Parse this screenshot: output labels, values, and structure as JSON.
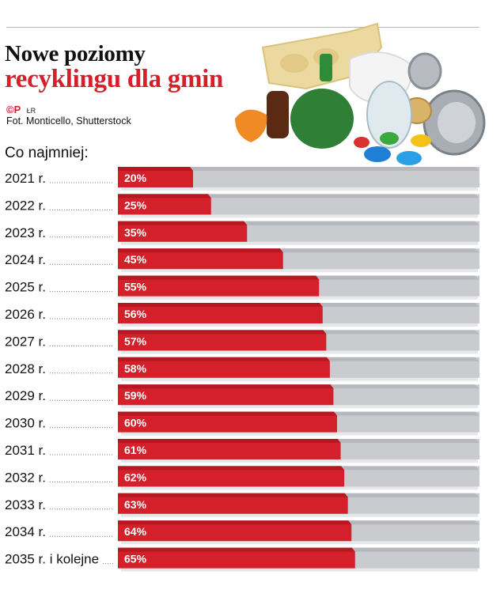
{
  "header": {
    "title_line1": "Nowe poziomy",
    "title_line2": "recyklingu dla gmin",
    "agency_logo": "©P",
    "author": "ŁR",
    "photo_credit": "Fot. Monticello, Shutterstock"
  },
  "colors": {
    "accent": "#d4202a",
    "bar_fill": "#d4202a",
    "bar_track": "#c9cbcf",
    "text": "#111111"
  },
  "illustration": "recyclable-waste-pile",
  "chart_data": {
    "type": "bar",
    "orientation": "horizontal",
    "subtitle": "Co najmniej:",
    "categories": [
      "2021 r.",
      "2022 r.",
      "2023 r.",
      "2024 r.",
      "2025 r.",
      "2026 r.",
      "2027 r.",
      "2028 r.",
      "2029 r.",
      "2030 r.",
      "2031 r.",
      "2032 r.",
      "2033 r.",
      "2034 r.",
      "2035 r. i kolejne"
    ],
    "values": [
      20,
      25,
      35,
      45,
      55,
      56,
      57,
      58,
      59,
      60,
      61,
      62,
      63,
      64,
      65
    ],
    "value_labels": [
      "20%",
      "25%",
      "35%",
      "45%",
      "55%",
      "56%",
      "57%",
      "58%",
      "59%",
      "60%",
      "61%",
      "62%",
      "63%",
      "64%",
      "65%"
    ],
    "unit": "%",
    "xlim": [
      0,
      100
    ],
    "grid": false,
    "legend": "none"
  }
}
